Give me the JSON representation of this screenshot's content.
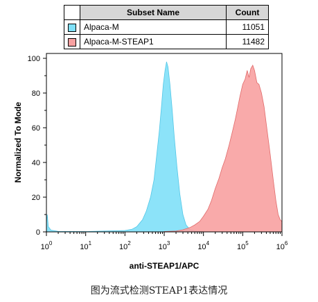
{
  "legend": {
    "header_name": "Subset Name",
    "header_count": "Count",
    "rows": [
      {
        "name": "Alpaca-M",
        "count": "11051",
        "color": "#7fe0f8"
      },
      {
        "name": "Alpaca-M-STEAP1",
        "count": "11482",
        "color": "#f8a1a1"
      }
    ]
  },
  "caption": "图为流式检测STEAP1表达情况",
  "chart_data": {
    "type": "area",
    "xlabel": "anti-STEAP1/APC",
    "ylabel": "Normalized To Mode",
    "x_scale": "log",
    "xlim": [
      1,
      1000000
    ],
    "ylim": [
      0,
      100
    ],
    "x_ticks": [
      1,
      10,
      100,
      1000,
      10000,
      100000,
      1000000
    ],
    "x_tick_labels": [
      {
        "base": "10",
        "exp": "0"
      },
      {
        "base": "10",
        "exp": "1"
      },
      {
        "base": "10",
        "exp": "2"
      },
      {
        "base": "10",
        "exp": "3"
      },
      {
        "base": "10",
        "exp": "4"
      },
      {
        "base": "10",
        "exp": "5"
      },
      {
        "base": "10",
        "exp": "6"
      }
    ],
    "y_ticks": [
      "0",
      "20",
      "40",
      "60",
      "80",
      "100"
    ],
    "grid": false,
    "series": [
      {
        "name": "Alpaca-M",
        "color": "#7fe0f8",
        "stroke": "#52c6e6",
        "points": [
          [
            1,
            5
          ],
          [
            1.05,
            10
          ],
          [
            1.12,
            3
          ],
          [
            1.3,
            1
          ],
          [
            2,
            0.3
          ],
          [
            10,
            0.2
          ],
          [
            100,
            0.8
          ],
          [
            150,
            1.5
          ],
          [
            200,
            3
          ],
          [
            280,
            7
          ],
          [
            350,
            12
          ],
          [
            450,
            20
          ],
          [
            550,
            30
          ],
          [
            650,
            45
          ],
          [
            750,
            58
          ],
          [
            850,
            72
          ],
          [
            950,
            85
          ],
          [
            1050,
            93
          ],
          [
            1150,
            98
          ],
          [
            1250,
            95
          ],
          [
            1400,
            85
          ],
          [
            1600,
            70
          ],
          [
            1800,
            55
          ],
          [
            2100,
            38
          ],
          [
            2500,
            22
          ],
          [
            3000,
            10
          ],
          [
            3600,
            4
          ],
          [
            4500,
            1.5
          ],
          [
            6000,
            0.5
          ],
          [
            10000,
            0.1
          ]
        ]
      },
      {
        "name": "Alpaca-M-STEAP1",
        "color": "#f8a1a1",
        "stroke": "#e06a6a",
        "points": [
          [
            1000,
            0.2
          ],
          [
            2000,
            0.5
          ],
          [
            3000,
            1.2
          ],
          [
            4500,
            2.5
          ],
          [
            6000,
            4
          ],
          [
            8000,
            6
          ],
          [
            10000,
            9
          ],
          [
            13000,
            13
          ],
          [
            16000,
            18
          ],
          [
            20000,
            25
          ],
          [
            25000,
            31
          ],
          [
            30000,
            37
          ],
          [
            36000,
            42
          ],
          [
            45000,
            50
          ],
          [
            55000,
            58
          ],
          [
            65000,
            65
          ],
          [
            75000,
            72
          ],
          [
            85000,
            78
          ],
          [
            100000,
            85
          ],
          [
            115000,
            88
          ],
          [
            130000,
            93
          ],
          [
            145000,
            89
          ],
          [
            160000,
            94
          ],
          [
            180000,
            96
          ],
          [
            200000,
            93
          ],
          [
            230000,
            86
          ],
          [
            260000,
            85
          ],
          [
            300000,
            80
          ],
          [
            350000,
            72
          ],
          [
            420000,
            58
          ],
          [
            500000,
            45
          ],
          [
            600000,
            30
          ],
          [
            700000,
            18
          ],
          [
            800000,
            10
          ],
          [
            900000,
            7
          ],
          [
            1000000,
            6
          ]
        ]
      }
    ]
  }
}
